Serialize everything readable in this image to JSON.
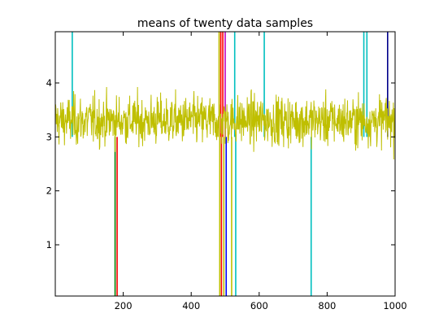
{
  "chart_data": {
    "type": "line",
    "title": "means of twenty data samples",
    "xlabel": "",
    "ylabel": "",
    "xlim": [
      0,
      1000
    ],
    "ylim": [
      0.05,
      4.95
    ],
    "grid": false,
    "legend": "none",
    "x_ticks": [
      200,
      400,
      600,
      800,
      1000
    ],
    "x_tick_labels": [
      "200",
      "400",
      "600",
      "800",
      "1000"
    ],
    "y_ticks": [
      1,
      2,
      3,
      4
    ],
    "y_tick_labels": [
      "1",
      "2",
      "3",
      "4"
    ],
    "n_points": 1000,
    "series_mean_level": 3.3,
    "series_typical_range": [
      2.3,
      4.3
    ],
    "dominant_series_color": "#bfbf00",
    "outlier_spikes": [
      {
        "x": 50,
        "y_from": 3.0,
        "y_to": 4.95,
        "color": "#00bfbf"
      },
      {
        "x": 176,
        "y_from": 3.0,
        "y_to": 0.05,
        "color": "#008000"
      },
      {
        "x": 182,
        "y_from": 3.0,
        "y_to": 0.05,
        "color": "#ff0000"
      },
      {
        "x": 482,
        "y_from": 3.0,
        "y_to": 4.95,
        "color": "#bfbf00"
      },
      {
        "x": 484,
        "y_from": 3.0,
        "y_to": 0.05,
        "color": "#bfbf00"
      },
      {
        "x": 487,
        "y_from": 3.0,
        "y_to": 4.95,
        "color": "#ff0000"
      },
      {
        "x": 489,
        "y_from": 3.0,
        "y_to": 0.05,
        "color": "#ff0000"
      },
      {
        "x": 493,
        "y_from": 3.0,
        "y_to": 4.95,
        "color": "#ff0000"
      },
      {
        "x": 496,
        "y_from": 3.0,
        "y_to": 0.05,
        "color": "#bfbf00"
      },
      {
        "x": 500,
        "y_from": 3.0,
        "y_to": 4.95,
        "color": "#bf00bf"
      },
      {
        "x": 503,
        "y_from": 3.0,
        "y_to": 0.05,
        "color": "#0000ff"
      },
      {
        "x": 519,
        "y_from": 3.0,
        "y_to": 0.05,
        "color": "#bfbf00"
      },
      {
        "x": 528,
        "y_from": 3.0,
        "y_to": 4.95,
        "color": "#00bfbf"
      },
      {
        "x": 531,
        "y_from": 3.0,
        "y_to": 0.05,
        "color": "#00bfbf"
      },
      {
        "x": 615,
        "y_from": 3.0,
        "y_to": 4.95,
        "color": "#00bfbf"
      },
      {
        "x": 753,
        "y_from": 3.0,
        "y_to": 0.05,
        "color": "#00bfbf"
      },
      {
        "x": 908,
        "y_from": 3.0,
        "y_to": 4.95,
        "color": "#00bfbf"
      },
      {
        "x": 917,
        "y_from": 3.0,
        "y_to": 4.95,
        "color": "#00bfbf"
      },
      {
        "x": 978,
        "y_from": 3.0,
        "y_to": 4.95,
        "color": "#00008b"
      }
    ]
  }
}
